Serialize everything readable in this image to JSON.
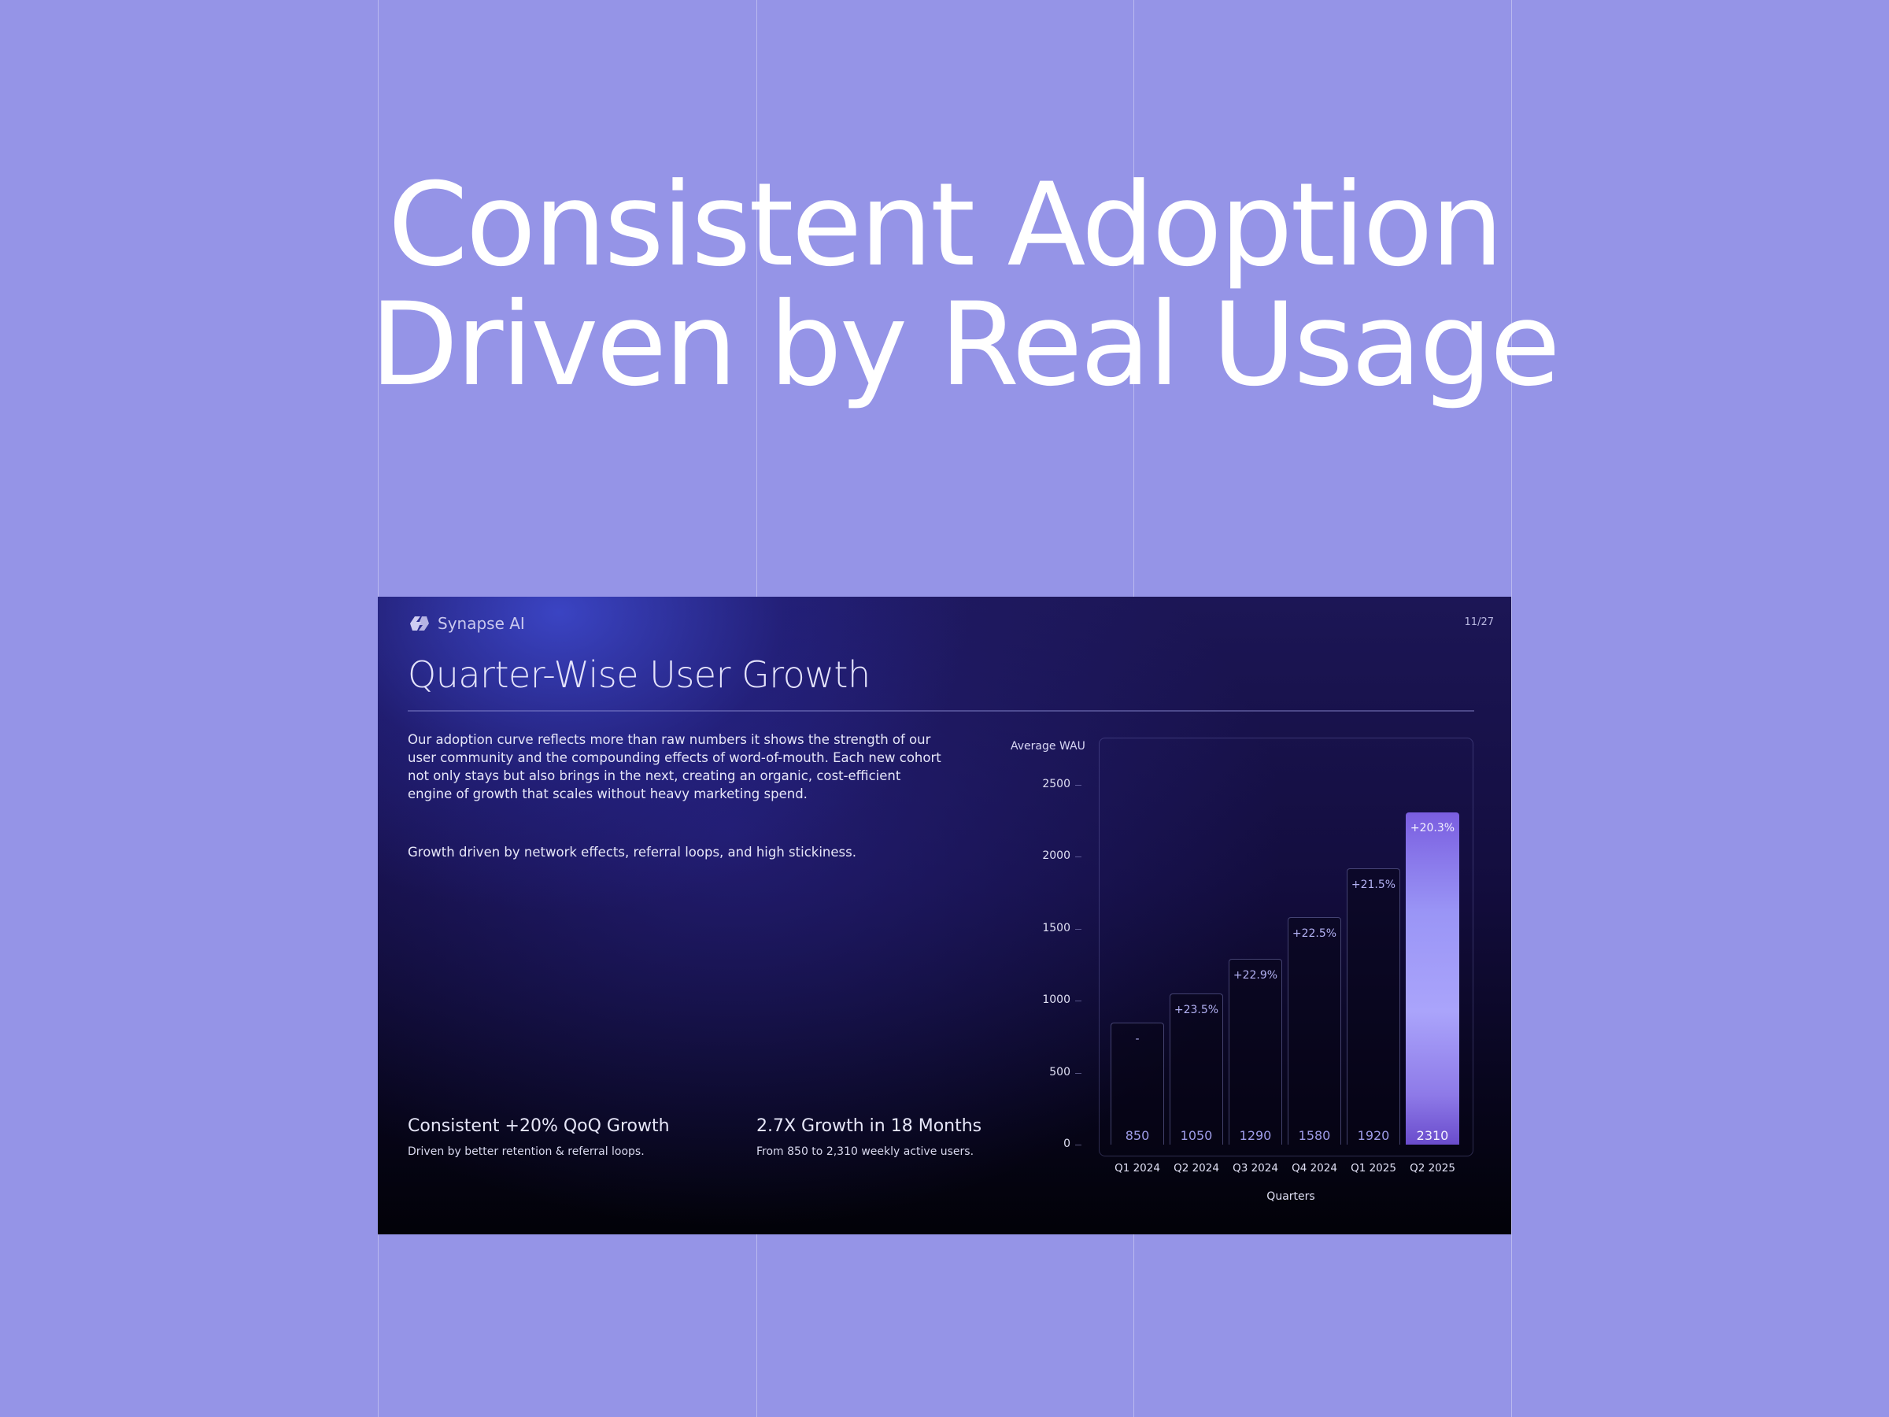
{
  "hero": {
    "line1": "Consistent Adoption",
    "line2": "Driven by Real Usage"
  },
  "slide": {
    "brand": "Synapse AI",
    "page_number": "11/27",
    "title": "Quarter-Wise User Growth",
    "body": "Our adoption curve reflects more than raw numbers it shows the strength of our user community and the compounding effects of word-of-mouth. Each new cohort not only stays but also brings in the next, creating an organic, cost-efficient engine of growth that scales without heavy marketing spend.",
    "body2": "Growth driven by network effects, referral loops, and high stickiness.",
    "stats": [
      {
        "title": "Consistent +20% QoQ Growth",
        "subtitle": "Driven by better retention & referral loops."
      },
      {
        "title": "2.7X Growth in 18 Months",
        "subtitle": "From 850 to 2,310 weekly active users."
      }
    ]
  },
  "chart_data": {
    "type": "bar",
    "title": "",
    "xlabel": "Quarters",
    "ylabel": "Average WAU",
    "ylim": [
      0,
      2500
    ],
    "yticks": [
      "0",
      "500",
      "1000",
      "1500",
      "2000",
      "2500"
    ],
    "categories": [
      "Q1 2024",
      "Q2 2024",
      "Q3 2024",
      "Q4 2024",
      "Q1 2025",
      "Q2 2025"
    ],
    "values": [
      850,
      1050,
      1290,
      1580,
      1920,
      2310
    ],
    "value_labels": [
      "850",
      "1050",
      "1290",
      "1580",
      "1920",
      "2310"
    ],
    "growth_labels": [
      "-",
      "+23.5%",
      "+22.9%",
      "+22.5%",
      "+21.5%",
      "+20.3%"
    ],
    "highlight_index": 5,
    "grid": false,
    "colors": {
      "bar_outline": "#8c8cd2",
      "highlight": "#9a95f6"
    }
  }
}
